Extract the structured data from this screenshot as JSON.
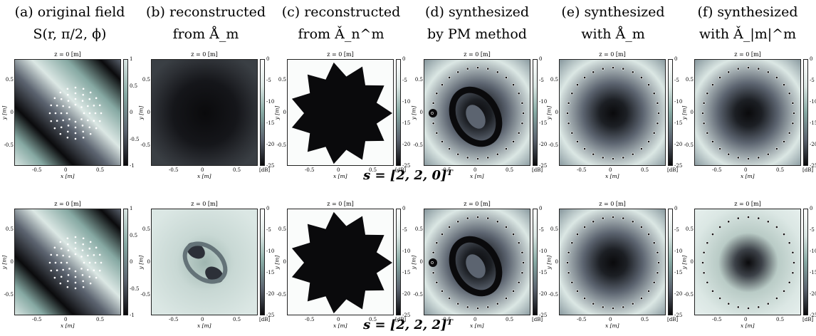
{
  "columns": [
    {
      "line1": "(a) original field",
      "line2": "S(r, π/2, ϕ)"
    },
    {
      "line1": "(b) reconstructed",
      "line2": "from Å_m"
    },
    {
      "line1": "(c) reconstructed",
      "line2": "from Ǎ_n^m"
    },
    {
      "line1": "(d) synthesized",
      "line2": "by PM method"
    },
    {
      "line1": "(e) synthesized",
      "line2": "with Å_m"
    },
    {
      "line1": "(f) synthesized",
      "line2": "with Ǎ_|m|^m"
    }
  ],
  "panel_common": {
    "title": "z = 0 [m]",
    "xlabel": "x [m]",
    "ylabel": "y [m]",
    "x_ticks": [
      "-0.5",
      "0",
      "0.5"
    ],
    "y_ticks": [
      "0.5",
      "0",
      "-0.5"
    ],
    "cbar_unit": "[dB]",
    "cbar_ticks_linear": [
      "1",
      "0.5",
      "0",
      "-0.5",
      "-1"
    ],
    "cbar_ticks_db": [
      "0",
      "-5",
      "-10",
      "-15",
      "-20",
      "-25"
    ]
  },
  "rows": [
    {
      "label": "s = [2, 2, 0]ᵀ",
      "panels": [
        "original",
        "recon-am-flat",
        "recon-anm",
        "pm",
        "synth-am",
        "synth-anm"
      ]
    },
    {
      "label": "s = [2, 2, 2]ᵀ",
      "panels": [
        "original",
        "recon-am-light",
        "recon-anm",
        "pm",
        "synth-am",
        "synth-anm-light"
      ]
    }
  ],
  "colors": {
    "dark": "#0a0a0c",
    "mid": "#5c6470",
    "light": "#dbe7e4",
    "teal": "#86a9a3"
  }
}
